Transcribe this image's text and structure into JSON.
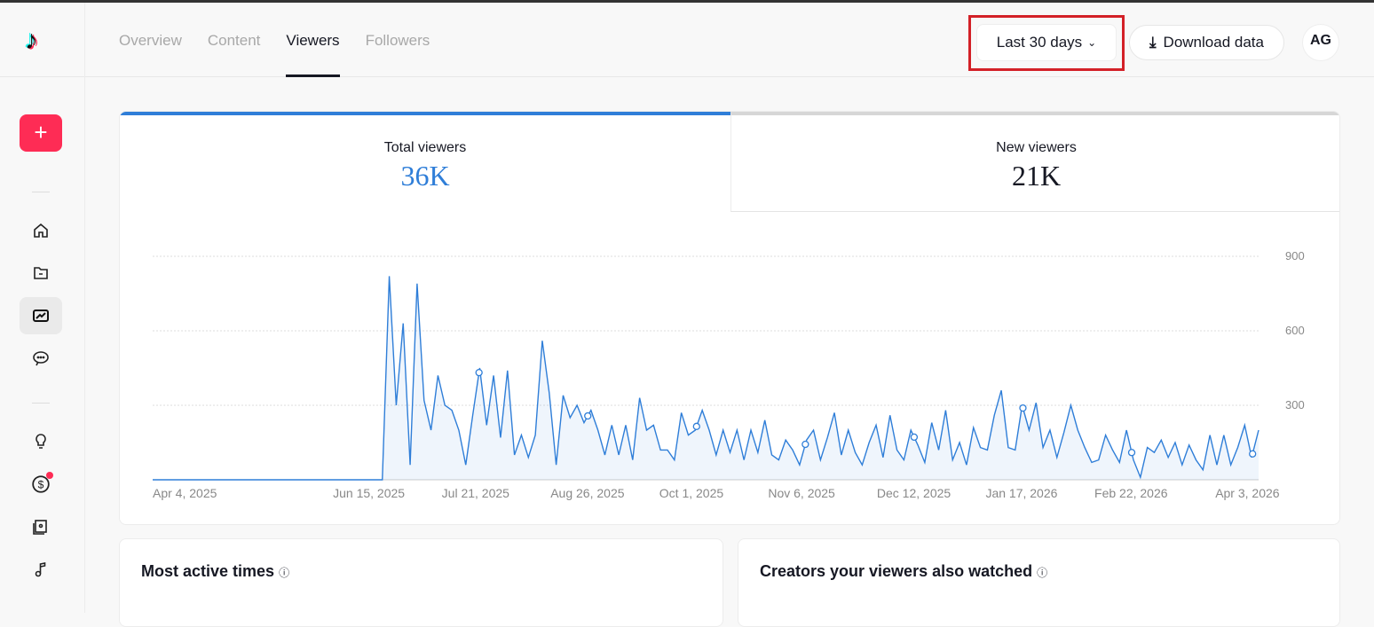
{
  "nav": {
    "tabs": [
      "Overview",
      "Content",
      "Viewers",
      "Followers"
    ],
    "active": "Viewers"
  },
  "toolbar": {
    "range_label": "Last 30 days",
    "download_label": "Download data",
    "avatar_text": "AG"
  },
  "sidebar": {
    "create_label": "+",
    "items": [
      "home",
      "content",
      "analytics",
      "comments",
      "inspiration",
      "monetization",
      "academy",
      "sounds"
    ],
    "active": "analytics"
  },
  "metrics": {
    "total_label": "Total viewers",
    "total_value": "36K",
    "new_label": "New viewers",
    "new_value": "21K"
  },
  "colors": {
    "accent": "#2f7ed8",
    "brand": "#fe2c55"
  },
  "chart_data": {
    "type": "area",
    "series_name": "Total viewers",
    "x_start": "2025-04-04",
    "x_end": "2026-04-05",
    "data_start": "2025-06-19",
    "ylim": [
      0,
      900
    ],
    "yticks": [
      300,
      600,
      900
    ],
    "xticks": [
      "Apr 4, 2025",
      "Jun 15, 2025",
      "Jul 21, 2025",
      "Aug 26, 2025",
      "Oct 1, 2025",
      "Nov 6, 2025",
      "Dec 12, 2025",
      "Jan 17, 2026",
      "Feb 22, 2026",
      "Apr 3, 2026"
    ],
    "values": [
      0,
      820,
      300,
      630,
      60,
      790,
      320,
      200,
      420,
      300,
      280,
      200,
      60,
      260,
      450,
      220,
      420,
      170,
      440,
      100,
      180,
      90,
      180,
      560,
      350,
      60,
      340,
      250,
      300,
      230,
      280,
      200,
      100,
      220,
      100,
      220,
      80,
      330,
      200,
      220,
      120,
      120,
      80,
      270,
      180,
      200,
      280,
      200,
      100,
      200,
      110,
      200,
      80,
      200,
      110,
      240,
      100,
      80,
      160,
      120,
      60,
      160,
      200,
      80,
      170,
      270,
      100,
      200,
      110,
      60,
      150,
      220,
      90,
      260,
      120,
      80,
      200,
      140,
      70,
      230,
      120,
      280,
      80,
      150,
      60,
      210,
      130,
      120,
      260,
      360,
      130,
      120,
      300,
      200,
      310,
      130,
      200,
      90,
      190,
      300,
      200,
      130,
      70,
      80,
      180,
      120,
      70,
      200,
      80,
      10,
      130,
      110,
      160,
      90,
      150,
      60,
      140,
      80,
      40,
      180,
      60,
      180,
      60,
      130,
      220,
      90,
      200
    ]
  },
  "panels": {
    "active_times": "Most active times",
    "creators": "Creators your viewers also watched"
  }
}
